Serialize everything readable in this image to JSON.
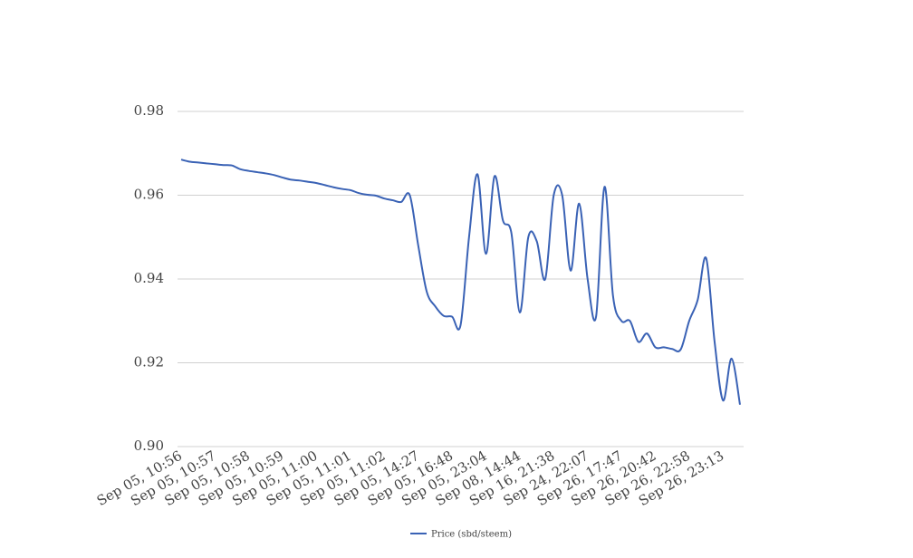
{
  "chart_data": {
    "type": "line",
    "categories": [
      "Sep 05, 10:56",
      null,
      null,
      null,
      "Sep 05, 10:57",
      null,
      null,
      null,
      "Sep 05, 10:58",
      null,
      null,
      null,
      "Sep 05, 10:59",
      null,
      null,
      null,
      "Sep 05, 11:00",
      null,
      null,
      null,
      "Sep 05, 11:01",
      null,
      null,
      null,
      "Sep 05, 11:02",
      null,
      null,
      null,
      "Sep 05, 14:27",
      null,
      null,
      null,
      "Sep 05, 16:48",
      null,
      null,
      null,
      "Sep 05, 23:04",
      null,
      null,
      null,
      "Sep 08, 14:44",
      null,
      null,
      null,
      "Sep 16, 21:38",
      null,
      null,
      null,
      "Sep 24, 22:07",
      null,
      null,
      null,
      "Sep 26, 17:47",
      null,
      null,
      null,
      "Sep 26, 20:42",
      null,
      null,
      null,
      "Sep 26, 22:58",
      null,
      null,
      null,
      "Sep 26, 23:13",
      null,
      null
    ],
    "series": [
      {
        "name": "Price (sbd/steem)",
        "color": "#3a62b5",
        "values": [
          0.9685,
          0.968,
          0.9678,
          0.9676,
          0.9674,
          0.9672,
          0.9671,
          0.9662,
          0.9658,
          0.9655,
          0.9652,
          0.9648,
          0.9642,
          0.9637,
          0.9635,
          0.9632,
          0.9629,
          0.9624,
          0.9619,
          0.9615,
          0.9612,
          0.9605,
          0.9601,
          0.9599,
          0.9592,
          0.9588,
          0.9584,
          0.96,
          0.948,
          0.937,
          0.9335,
          0.9312,
          0.931,
          0.929,
          0.95,
          0.965,
          0.946,
          0.9645,
          0.954,
          0.951,
          0.932,
          0.95,
          0.949,
          0.94,
          0.96,
          0.96,
          0.942,
          0.958,
          0.94,
          0.931,
          0.962,
          0.936,
          0.93,
          0.93,
          0.925,
          0.927,
          0.9237,
          0.9237,
          0.9233,
          0.9232,
          0.93,
          0.935,
          0.945,
          0.925,
          0.911,
          0.921,
          0.91
        ]
      }
    ],
    "ylim": [
      0.9,
      0.98
    ],
    "yticks": [
      {
        "value": 0.9,
        "label": "0.90"
      },
      {
        "value": 0.92,
        "label": "0.92"
      },
      {
        "value": 0.94,
        "label": "0.94"
      },
      {
        "value": 0.96,
        "label": "0.96"
      },
      {
        "value": 0.98,
        "label": "0.98"
      }
    ],
    "grid": true,
    "legend": "bottom"
  }
}
